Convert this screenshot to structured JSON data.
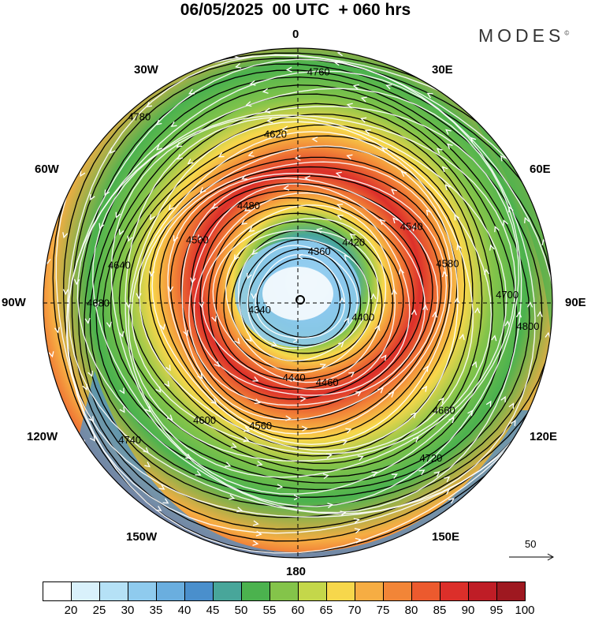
{
  "header": {
    "title": "06/05/2025  00 UTC  + 060 hrs",
    "logo_text": "MODES",
    "logo_mark": "©"
  },
  "map": {
    "projection": "north-polar-stereographic",
    "longitude_labels": [
      "0",
      "30E",
      "60E",
      "90E",
      "120E",
      "150E",
      "180",
      "150W",
      "120W",
      "90W",
      "60W",
      "30W"
    ],
    "contour_field": "geopotential height",
    "contour_interval": 20,
    "contour_labels": [
      {
        "value": "4700",
        "ring": 4700
      },
      {
        "value": "4740",
        "ring": 4740
      },
      {
        "value": "4760",
        "ring": 4760
      },
      {
        "value": "4720",
        "ring": 4720
      },
      {
        "value": "4640",
        "ring": 4640
      },
      {
        "value": "4540",
        "ring": 4540
      },
      {
        "value": "4560",
        "ring": 4560
      },
      {
        "value": "4480",
        "ring": 4480
      },
      {
        "value": "4400",
        "ring": 4400
      },
      {
        "value": "4340",
        "ring": 4340
      },
      {
        "value": "4360",
        "ring": 4360
      },
      {
        "value": "4460",
        "ring": 4460
      },
      {
        "value": "4500",
        "ring": 4500
      },
      {
        "value": "4580",
        "ring": 4580
      },
      {
        "value": "4600",
        "ring": 4600
      },
      {
        "value": "4620",
        "ring": 4620
      },
      {
        "value": "4660",
        "ring": 4660
      },
      {
        "value": "4680",
        "ring": 4680
      },
      {
        "value": "4420",
        "ring": 4420
      },
      {
        "value": "4440",
        "ring": 4440
      },
      {
        "value": "4780",
        "ring": 4780
      },
      {
        "value": "4800",
        "ring": 4800
      }
    ],
    "wind_speed_shading": "colors by speed (see colorbar)"
  },
  "reference_vector": {
    "label": "50"
  },
  "colorbar": {
    "labels": [
      "20",
      "25",
      "30",
      "35",
      "40",
      "45",
      "50",
      "55",
      "60",
      "65",
      "70",
      "75",
      "80",
      "85",
      "90",
      "95",
      "100"
    ],
    "colors": [
      "#ffffff",
      "#d9f1fb",
      "#b5e1f6",
      "#8fcbee",
      "#6aaedf",
      "#4a8fcc",
      "#48a69a",
      "#4bb24e",
      "#84c44a",
      "#c4d74a",
      "#f7d74b",
      "#f6ad43",
      "#f28537",
      "#ec5a2e",
      "#dc2f2a",
      "#bf1d26",
      "#9e1820"
    ]
  }
}
